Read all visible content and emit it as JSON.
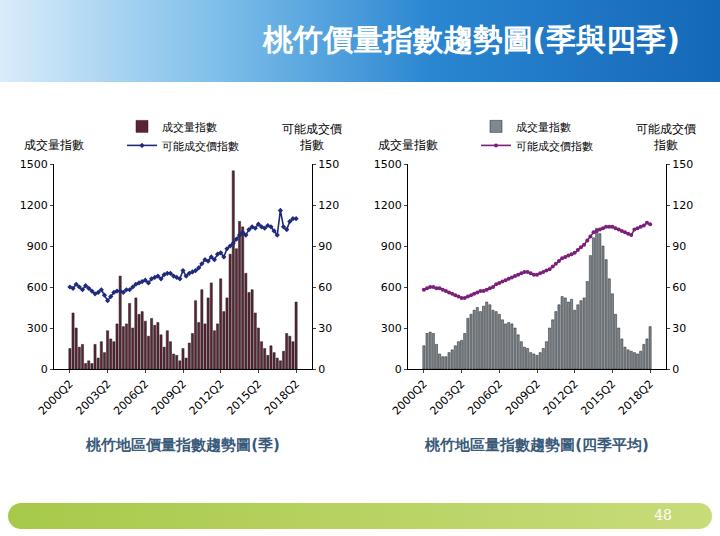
{
  "header": {
    "title": "桃竹價量指數趨勢圖(季與四季)"
  },
  "page_number": "48",
  "chart_data": [
    {
      "type": "bar",
      "title": "桃竹地區價量指數趨勢圖(季)",
      "ylabel": "成交量指數",
      "y2label": "可能成交價指數",
      "categories": [
        "2000Q2",
        null,
        null,
        null,
        null,
        null,
        null,
        null,
        null,
        null,
        null,
        null,
        "2003Q2",
        null,
        null,
        null,
        null,
        null,
        null,
        null,
        null,
        null,
        null,
        null,
        "2006Q2",
        null,
        null,
        null,
        null,
        null,
        null,
        null,
        null,
        null,
        null,
        null,
        "2009Q2",
        null,
        null,
        null,
        null,
        null,
        null,
        null,
        null,
        null,
        null,
        null,
        "2012Q2",
        null,
        null,
        null,
        null,
        null,
        null,
        null,
        null,
        null,
        null,
        null,
        "2015Q2",
        null,
        null,
        null,
        null,
        null,
        null,
        null,
        null,
        null,
        null,
        null,
        "2018Q2"
      ],
      "series": [
        {
          "name": "成交量指數",
          "type": "bar",
          "color": "#5b2333",
          "values": [
            150,
            410,
            300,
            160,
            180,
            40,
            60,
            40,
            180,
            80,
            200,
            120,
            280,
            220,
            200,
            330,
            680,
            310,
            330,
            480,
            300,
            520,
            400,
            420,
            350,
            240,
            370,
            320,
            340,
            250,
            160,
            280,
            200,
            110,
            100,
            60,
            150,
            80,
            190,
            260,
            500,
            340,
            580,
            330,
            520,
            630,
            280,
            330,
            660,
            420,
            520,
            840,
            1450,
            880,
            1080,
            1040,
            700,
            560,
            580,
            410,
            300,
            200,
            150,
            100,
            170,
            120,
            80,
            60,
            130,
            260,
            240,
            200,
            490
          ]
        },
        {
          "name": "可能成交價指數",
          "type": "line",
          "axis": "y2",
          "color": "#1f2a7a",
          "marker": "diamond",
          "line_style": "solid",
          "values": [
            60,
            59,
            62,
            60,
            58,
            61,
            59,
            57,
            55,
            56,
            58,
            54,
            50,
            53,
            56,
            57,
            57,
            56,
            58,
            58,
            60,
            62,
            63,
            64,
            65,
            63,
            66,
            67,
            68,
            66,
            69,
            70,
            70,
            68,
            67,
            66,
            72,
            68,
            70,
            71,
            72,
            74,
            77,
            80,
            79,
            82,
            80,
            84,
            85,
            82,
            88,
            90,
            92,
            95,
            98,
            100,
            98,
            102,
            104,
            103,
            106,
            104,
            103,
            105,
            104,
            101,
            98,
            116,
            104,
            102,
            108,
            110,
            110
          ]
        }
      ],
      "ylim": [
        0,
        1500
      ],
      "yticks": [
        0,
        300,
        600,
        900,
        1200,
        1500
      ],
      "y2lim": [
        0,
        150
      ],
      "y2ticks": [
        0,
        30,
        60,
        90,
        120,
        150
      ],
      "legend": "top",
      "grid": false
    },
    {
      "type": "bar",
      "title": "桃竹地區量指數趨勢圖(四季平均)",
      "ylabel": "成交量指數",
      "y2label": "可能成交價指數",
      "categories": [
        "2000Q2",
        null,
        null,
        null,
        null,
        null,
        null,
        null,
        null,
        null,
        null,
        null,
        "2003Q2",
        null,
        null,
        null,
        null,
        null,
        null,
        null,
        null,
        null,
        null,
        null,
        "2006Q2",
        null,
        null,
        null,
        null,
        null,
        null,
        null,
        null,
        null,
        null,
        null,
        "2009Q2",
        null,
        null,
        null,
        null,
        null,
        null,
        null,
        null,
        null,
        null,
        null,
        "2012Q2",
        null,
        null,
        null,
        null,
        null,
        null,
        null,
        null,
        null,
        null,
        null,
        "2015Q2",
        null,
        null,
        null,
        null,
        null,
        null,
        null,
        null,
        null,
        null,
        null,
        "2018Q2"
      ],
      "series": [
        {
          "name": "成交量指數",
          "type": "bar",
          "color": "#7f8890",
          "values": [
            170,
            260,
            270,
            260,
            180,
            110,
            90,
            90,
            120,
            140,
            170,
            200,
            210,
            260,
            370,
            400,
            430,
            450,
            420,
            460,
            490,
            470,
            430,
            420,
            400,
            360,
            330,
            340,
            330,
            300,
            250,
            200,
            160,
            150,
            120,
            110,
            100,
            120,
            150,
            200,
            300,
            360,
            420,
            470,
            530,
            520,
            490,
            510,
            430,
            470,
            500,
            520,
            640,
            830,
            960,
            1030,
            990,
            900,
            800,
            660,
            550,
            400,
            300,
            220,
            160,
            140,
            130,
            120,
            110,
            130,
            180,
            220,
            310
          ]
        },
        {
          "name": "可能成交價指數",
          "type": "line",
          "axis": "y2",
          "color": "#7a1f7a",
          "marker": "circle",
          "line_style": "solid",
          "values": [
            58,
            59,
            60,
            60,
            59,
            59,
            58,
            57,
            56,
            55,
            54,
            53,
            52,
            52,
            53,
            54,
            55,
            56,
            57,
            57,
            58,
            59,
            60,
            62,
            63,
            64,
            65,
            66,
            67,
            68,
            69,
            70,
            71,
            71,
            70,
            69,
            69,
            70,
            71,
            72,
            73,
            75,
            77,
            79,
            81,
            82,
            83,
            84,
            85,
            87,
            89,
            91,
            94,
            97,
            100,
            101,
            102,
            103,
            104,
            104,
            104,
            103,
            102,
            101,
            100,
            99,
            98,
            102,
            103,
            104,
            105,
            107,
            106
          ]
        }
      ],
      "ylim": [
        0,
        1500
      ],
      "yticks": [
        0,
        300,
        600,
        900,
        1200,
        1500
      ],
      "y2lim": [
        0,
        150
      ],
      "y2ticks": [
        0,
        30,
        60,
        90,
        120,
        150
      ],
      "legend": "top",
      "grid": false
    }
  ]
}
